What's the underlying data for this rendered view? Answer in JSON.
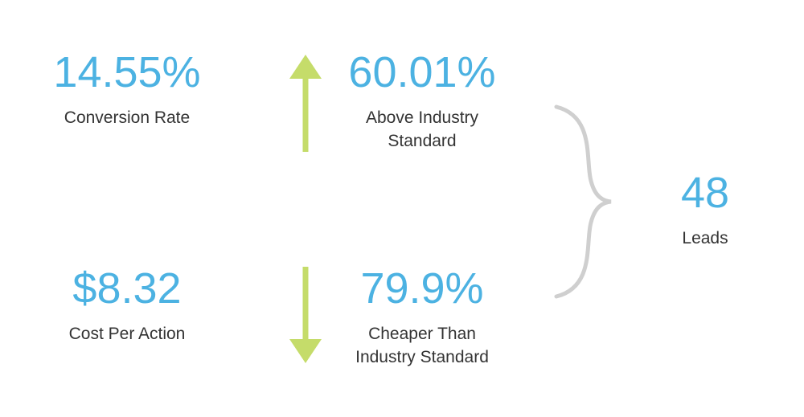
{
  "stats": [
    {
      "value": "14.55%",
      "label": [
        "Conversion Rate"
      ]
    },
    {
      "value": "60.01%",
      "label": [
        "Above Industry",
        "Standard"
      ]
    },
    {
      "value": "$8.32",
      "label": [
        "Cost Per Action"
      ]
    },
    {
      "value": "79.9%",
      "label": [
        "Cheaper Than",
        "Industry Standard"
      ]
    },
    {
      "value": "48",
      "label": [
        "Leads"
      ]
    }
  ]
}
